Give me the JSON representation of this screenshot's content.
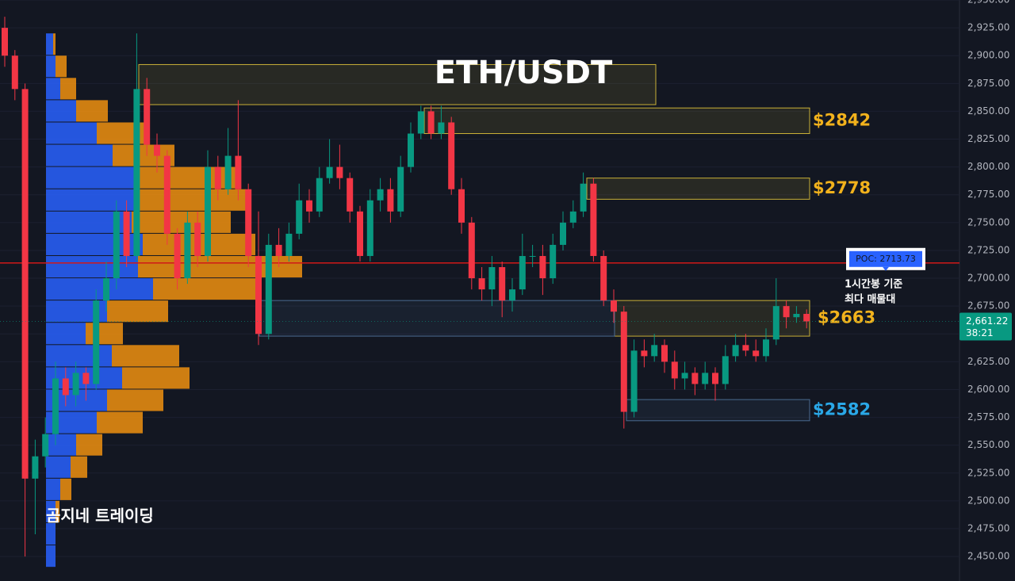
{
  "chart_data": {
    "type": "candlestick",
    "title": "ETH/USDT",
    "watermark": "곰지네 트레이딩",
    "ylim": [
      2428,
      2950
    ],
    "yticks": [
      {
        "value": 2450,
        "label": "2,450.00"
      },
      {
        "value": 2475,
        "label": "2,475.00"
      },
      {
        "value": 2500,
        "label": "2,500.00"
      },
      {
        "value": 2525,
        "label": "2,525.00"
      },
      {
        "value": 2550,
        "label": "2,550.00"
      },
      {
        "value": 2575,
        "label": "2,575.00"
      },
      {
        "value": 2600,
        "label": "2,600.00"
      },
      {
        "value": 2625,
        "label": "2,625.00"
      },
      {
        "value": 2650,
        "label": "2,650.00"
      },
      {
        "value": 2675,
        "label": "2,675.00"
      },
      {
        "value": 2700,
        "label": "2,700.00"
      },
      {
        "value": 2725,
        "label": "2,725.00"
      },
      {
        "value": 2750,
        "label": "2,750.00"
      },
      {
        "value": 2775,
        "label": "2,775.00"
      },
      {
        "value": 2800,
        "label": "2,800.00"
      },
      {
        "value": 2825,
        "label": "2,825.00"
      },
      {
        "value": 2850,
        "label": "2,850.00"
      },
      {
        "value": 2875,
        "label": "2,875.00"
      },
      {
        "value": 2900,
        "label": "2,900.00"
      },
      {
        "value": 2925,
        "label": "2,925.00"
      },
      {
        "value": 2950,
        "label": "2,950.00"
      }
    ],
    "up_color": "#089981",
    "down_color": "#f23645",
    "candles": [
      [
        2925,
        2935,
        2890,
        2900
      ],
      [
        2900,
        2905,
        2860,
        2870
      ],
      [
        2870,
        2875,
        2450,
        2520
      ],
      [
        2520,
        2555,
        2470,
        2540
      ],
      [
        2540,
        2575,
        2530,
        2560
      ],
      [
        2560,
        2625,
        2550,
        2610
      ],
      [
        2610,
        2620,
        2585,
        2595
      ],
      [
        2595,
        2625,
        2585,
        2615
      ],
      [
        2615,
        2620,
        2590,
        2605
      ],
      [
        2605,
        2690,
        2600,
        2680
      ],
      [
        2680,
        2715,
        2670,
        2700
      ],
      [
        2700,
        2770,
        2690,
        2760
      ],
      [
        2760,
        2770,
        2710,
        2720
      ],
      [
        2720,
        2920,
        2715,
        2870
      ],
      [
        2870,
        2880,
        2810,
        2820
      ],
      [
        2820,
        2830,
        2795,
        2810
      ],
      [
        2810,
        2815,
        2730,
        2740
      ],
      [
        2740,
        2745,
        2690,
        2700
      ],
      [
        2700,
        2760,
        2695,
        2750
      ],
      [
        2750,
        2760,
        2710,
        2720
      ],
      [
        2720,
        2815,
        2715,
        2800
      ],
      [
        2800,
        2810,
        2770,
        2780
      ],
      [
        2780,
        2835,
        2775,
        2810
      ],
      [
        2810,
        2860,
        2770,
        2780
      ],
      [
        2780,
        2785,
        2710,
        2720
      ],
      [
        2720,
        2760,
        2640,
        2650
      ],
      [
        2650,
        2740,
        2645,
        2730
      ],
      [
        2730,
        2745,
        2710,
        2720
      ],
      [
        2720,
        2750,
        2715,
        2740
      ],
      [
        2740,
        2785,
        2735,
        2770
      ],
      [
        2770,
        2780,
        2750,
        2760
      ],
      [
        2760,
        2800,
        2755,
        2790
      ],
      [
        2790,
        2825,
        2785,
        2800
      ],
      [
        2800,
        2820,
        2780,
        2790
      ],
      [
        2790,
        2795,
        2750,
        2760
      ],
      [
        2760,
        2765,
        2715,
        2720
      ],
      [
        2720,
        2780,
        2715,
        2770
      ],
      [
        2770,
        2790,
        2760,
        2780
      ],
      [
        2780,
        2790,
        2750,
        2760
      ],
      [
        2760,
        2810,
        2755,
        2800
      ],
      [
        2800,
        2840,
        2795,
        2830
      ],
      [
        2830,
        2855,
        2825,
        2850
      ],
      [
        2850,
        2855,
        2825,
        2830
      ],
      [
        2830,
        2855,
        2825,
        2840
      ],
      [
        2840,
        2845,
        2775,
        2780
      ],
      [
        2780,
        2790,
        2740,
        2750
      ],
      [
        2750,
        2755,
        2690,
        2700
      ],
      [
        2700,
        2710,
        2680,
        2690
      ],
      [
        2690,
        2720,
        2675,
        2710
      ],
      [
        2710,
        2715,
        2665,
        2680
      ],
      [
        2680,
        2700,
        2670,
        2690
      ],
      [
        2690,
        2740,
        2685,
        2720
      ],
      [
        2720,
        2730,
        2710,
        2720
      ],
      [
        2720,
        2730,
        2685,
        2700
      ],
      [
        2700,
        2740,
        2695,
        2730
      ],
      [
        2730,
        2760,
        2725,
        2750
      ],
      [
        2750,
        2770,
        2745,
        2760
      ],
      [
        2760,
        2795,
        2755,
        2785
      ],
      [
        2785,
        2790,
        2715,
        2720
      ],
      [
        2720,
        2725,
        2675,
        2680
      ],
      [
        2680,
        2690,
        2660,
        2670
      ],
      [
        2670,
        2675,
        2565,
        2580
      ],
      [
        2580,
        2645,
        2575,
        2635
      ],
      [
        2635,
        2645,
        2620,
        2630
      ],
      [
        2630,
        2650,
        2625,
        2640
      ],
      [
        2640,
        2645,
        2615,
        2625
      ],
      [
        2625,
        2635,
        2600,
        2610
      ],
      [
        2610,
        2625,
        2600,
        2615
      ],
      [
        2615,
        2620,
        2595,
        2605
      ],
      [
        2605,
        2625,
        2600,
        2615
      ],
      [
        2615,
        2620,
        2590,
        2605
      ],
      [
        2605,
        2640,
        2600,
        2630
      ],
      [
        2630,
        2650,
        2625,
        2640
      ],
      [
        2640,
        2650,
        2630,
        2635
      ],
      [
        2635,
        2645,
        2625,
        2630
      ],
      [
        2630,
        2655,
        2625,
        2645
      ],
      [
        2645,
        2700,
        2640,
        2675
      ],
      [
        2675,
        2680,
        2655,
        2665
      ],
      [
        2665,
        2675,
        2660,
        2668
      ],
      [
        2668,
        2672,
        2655,
        2661.22
      ]
    ],
    "volume_profile": {
      "bins": [
        2440,
        2460,
        2480,
        2500,
        2520,
        2540,
        2560,
        2580,
        2600,
        2620,
        2640,
        2660,
        2680,
        2700,
        2720,
        2740,
        2760,
        2780,
        2800,
        2820,
        2840,
        2860,
        2880,
        2900,
        2920
      ],
      "buy_color": "#2962ff",
      "sell_color": "#f0900f",
      "buy": [
        12,
        12,
        12,
        18,
        31,
        38,
        64,
        77,
        96,
        83,
        50,
        77,
        135,
        116,
        122,
        108,
        115,
        115,
        84,
        64,
        38,
        18,
        12,
        9
      ],
      "sell": [
        0,
        0,
        5,
        14,
        21,
        33,
        58,
        71,
        85,
        85,
        47,
        77,
        134,
        207,
        142,
        125,
        137,
        124,
        78,
        65,
        40,
        20,
        14,
        3
      ]
    },
    "zones": [
      {
        "low": 2856,
        "high": 2892,
        "color": "#c9b037"
      },
      {
        "low": 2830,
        "high": 2853,
        "color": "#c9b037",
        "label": "$2842"
      },
      {
        "low": 2771,
        "high": 2790,
        "color": "#c9b037",
        "label": "$2778"
      },
      {
        "low": 2648,
        "high": 2680,
        "color": "#c9b037",
        "label": "$2663"
      },
      {
        "low": 2648,
        "high": 2680,
        "color": "#4a6a90"
      },
      {
        "low": 2572,
        "high": 2591,
        "color": "#4a6a90",
        "label": "$2582"
      }
    ],
    "label_colors": [
      "#f2b21c",
      "#f2b21c",
      "#f2b21c",
      "#2aa8e8"
    ],
    "poc": {
      "value": 2713.73,
      "label": "POC: 2713.73",
      "color": "#d01818"
    },
    "annotation": [
      "1시간봉 기준",
      "최다 매물대"
    ],
    "last_price": {
      "value": 2661.22,
      "label": "2,661.22"
    },
    "countdown": "38:21"
  }
}
